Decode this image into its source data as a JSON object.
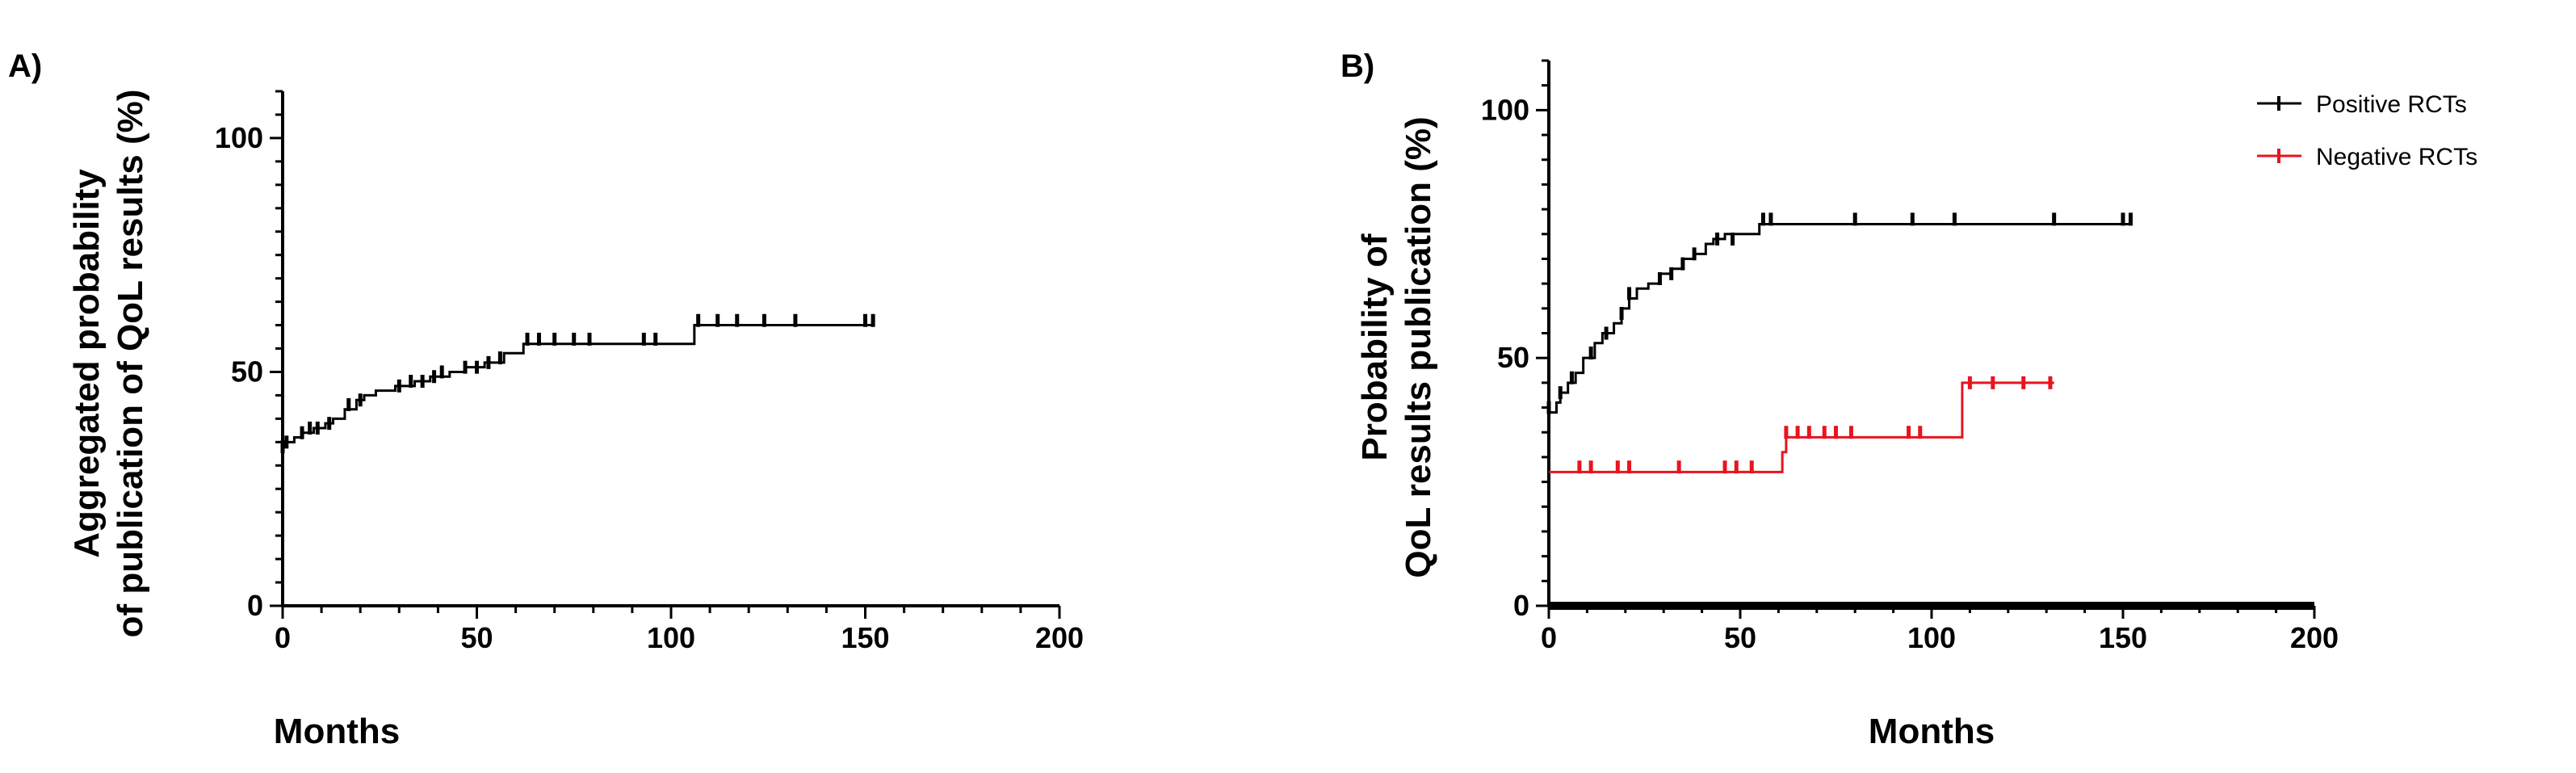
{
  "chart_data": [
    {
      "id": "A",
      "type": "line",
      "panel_label": "A)",
      "title": "",
      "xlabel": "Months",
      "ylabel": [
        "Aggregated probability",
        "of publication of QoL results (%)"
      ],
      "xlim": [
        0,
        200
      ],
      "ylim": [
        0,
        110
      ],
      "x_ticks": [
        0,
        50,
        100,
        150,
        200
      ],
      "y_ticks": [
        0,
        50,
        100
      ],
      "grid": false,
      "legend": "none",
      "series": [
        {
          "color": "#000000",
          "curve": [
            [
              0,
              34
            ],
            [
              1,
              35
            ],
            [
              3,
              36
            ],
            [
              5,
              37
            ],
            [
              8,
              38
            ],
            [
              11,
              39
            ],
            [
              13,
              40
            ],
            [
              16,
              42
            ],
            [
              19,
              44
            ],
            [
              21,
              45
            ],
            [
              24,
              46
            ],
            [
              29,
              47
            ],
            [
              34,
              48
            ],
            [
              38,
              49
            ],
            [
              43,
              50
            ],
            [
              47,
              51
            ],
            [
              52,
              52
            ],
            [
              57,
              54
            ],
            [
              62,
              56
            ],
            [
              95,
              56
            ],
            [
              106,
              60
            ],
            [
              152,
              60
            ]
          ],
          "censored": [
            [
              0,
              34
            ],
            [
              1,
              35
            ],
            [
              5,
              37
            ],
            [
              7,
              38
            ],
            [
              9,
              38
            ],
            [
              12,
              39
            ],
            [
              17,
              43
            ],
            [
              20,
              44
            ],
            [
              30,
              47
            ],
            [
              33,
              48
            ],
            [
              36,
              48
            ],
            [
              39,
              49
            ],
            [
              41,
              50
            ],
            [
              47,
              51
            ],
            [
              50,
              51
            ],
            [
              53,
              52
            ],
            [
              56,
              53
            ],
            [
              63,
              57
            ],
            [
              66,
              57
            ],
            [
              70,
              57
            ],
            [
              75,
              57
            ],
            [
              79,
              57
            ],
            [
              93,
              57
            ],
            [
              96,
              57
            ],
            [
              107,
              61
            ],
            [
              112,
              61
            ],
            [
              117,
              61
            ],
            [
              124,
              61
            ],
            [
              132,
              61
            ],
            [
              150,
              61
            ],
            [
              152,
              61
            ]
          ]
        }
      ]
    },
    {
      "id": "B",
      "type": "line",
      "panel_label": "B)",
      "title": "",
      "xlabel": "Months",
      "ylabel": [
        "Probability of",
        "QoL results publication (%)"
      ],
      "xlim": [
        0,
        200
      ],
      "ylim": [
        0,
        110
      ],
      "x_ticks": [
        0,
        50,
        100,
        150,
        200
      ],
      "y_ticks": [
        0,
        50,
        100
      ],
      "grid": false,
      "legend": "top-right",
      "series": [
        {
          "name": "Positive RCTs",
          "color": "#000000",
          "curve": [
            [
              0,
              39
            ],
            [
              2,
              41
            ],
            [
              3,
              43
            ],
            [
              5,
              45
            ],
            [
              7,
              47
            ],
            [
              9,
              50
            ],
            [
              12,
              53
            ],
            [
              14,
              55
            ],
            [
              17,
              57
            ],
            [
              19,
              60
            ],
            [
              21,
              62
            ],
            [
              23,
              64
            ],
            [
              26,
              65
            ],
            [
              29,
              67
            ],
            [
              32,
              68
            ],
            [
              35,
              70
            ],
            [
              38,
              71
            ],
            [
              41,
              73
            ],
            [
              43,
              74
            ],
            [
              46,
              75
            ],
            [
              55,
              77
            ],
            [
              152,
              77
            ]
          ],
          "censored": [
            [
              0,
              40
            ],
            [
              3,
              43
            ],
            [
              6,
              46
            ],
            [
              11,
              51
            ],
            [
              15,
              55
            ],
            [
              19,
              59
            ],
            [
              21,
              63
            ],
            [
              29,
              66
            ],
            [
              32,
              67
            ],
            [
              35,
              69
            ],
            [
              38,
              71
            ],
            [
              44,
              74
            ],
            [
              48,
              74
            ],
            [
              56,
              78
            ],
            [
              58,
              78
            ],
            [
              80,
              78
            ],
            [
              95,
              78
            ],
            [
              106,
              78
            ],
            [
              132,
              78
            ],
            [
              150,
              78
            ],
            [
              152,
              78
            ]
          ]
        },
        {
          "name": "Negative RCTs",
          "color": "#e8141e",
          "curve": [
            [
              0,
              27
            ],
            [
              60,
              27
            ],
            [
              61,
              31
            ],
            [
              62,
              34
            ],
            [
              107,
              34
            ],
            [
              108,
              45
            ],
            [
              132,
              45
            ]
          ],
          "censored": [
            [
              8,
              28
            ],
            [
              11,
              28
            ],
            [
              18,
              28
            ],
            [
              21,
              28
            ],
            [
              34,
              28
            ],
            [
              46,
              28
            ],
            [
              49,
              28
            ],
            [
              53,
              28
            ],
            [
              62,
              35
            ],
            [
              65,
              35
            ],
            [
              68,
              35
            ],
            [
              72,
              35
            ],
            [
              75,
              35
            ],
            [
              79,
              35
            ],
            [
              94,
              35
            ],
            [
              97,
              35
            ],
            [
              110,
              45
            ],
            [
              116,
              45
            ],
            [
              124,
              45
            ],
            [
              131,
              45
            ]
          ]
        }
      ]
    }
  ]
}
